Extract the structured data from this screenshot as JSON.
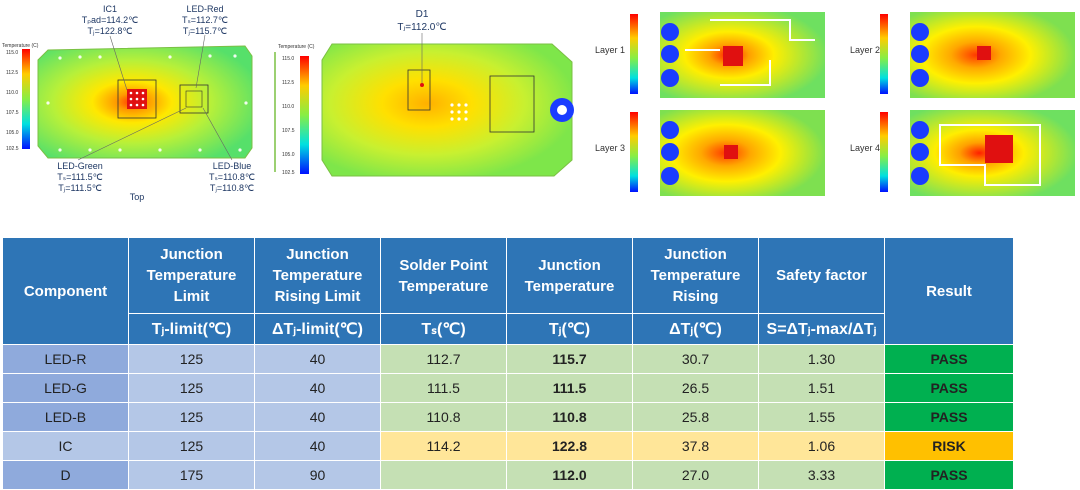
{
  "figure": {
    "top_view": {
      "ic1": {
        "name": "IC1",
        "tpad": "Tₚad=114.2℃",
        "tj": "Tⱼ=122.8℃"
      },
      "led_red": {
        "name": "LED-Red",
        "ts": "Tₛ=112.7℃",
        "tj": "Tⱼ=115.7℃"
      },
      "led_green": {
        "name": "LED-Green",
        "ts": "Tₛ=111.5℃",
        "tj": "Tⱼ=111.5℃"
      },
      "led_blue": {
        "name": "LED-Blue",
        "ts": "Tₛ=110.8℃",
        "tj": "Tⱼ=110.8℃"
      },
      "label": "Top",
      "scale_title": "Temperature (C)",
      "scale_ticks": [
        "115.0",
        "112.5",
        "110.0",
        "107.5",
        "105.0",
        "102.5"
      ]
    },
    "d1_view": {
      "name": "D1",
      "tj": "Tⱼ=112.0℃",
      "scale_title": "Temperature (C)",
      "scale_ticks": [
        "115.0",
        "112.5",
        "110.0",
        "107.5",
        "105.0",
        "102.5"
      ]
    },
    "layers": [
      "Layer 1",
      "Layer 2",
      "Layer 3",
      "Layer 4"
    ]
  },
  "chart_data": {
    "type": "table",
    "columns": [
      "Component",
      "Junction Temperature Limit",
      "Junction Temperature Rising Limit",
      "Solder Point Temperature",
      "Junction Temperature",
      "Junction Temperature Rising",
      "Safety factor",
      "Result"
    ],
    "units": [
      "",
      "Tⱼ-limit(℃)",
      "ΔTⱼ-limit(℃)",
      "Tₛ(℃)",
      "Tⱼ(℃)",
      "ΔTⱼ(℃)",
      "S=ΔTⱼ-max/ΔTⱼ",
      ""
    ],
    "rows": [
      {
        "component": "LED-R",
        "tj_limit": "125",
        "dtj_limit": "40",
        "ts": "112.7",
        "tj": "115.7",
        "dtj": "30.7",
        "sf": "1.30",
        "result": "PASS"
      },
      {
        "component": "LED-G",
        "tj_limit": "125",
        "dtj_limit": "40",
        "ts": "111.5",
        "tj": "111.5",
        "dtj": "26.5",
        "sf": "1.51",
        "result": "PASS"
      },
      {
        "component": "LED-B",
        "tj_limit": "125",
        "dtj_limit": "40",
        "ts": "110.8",
        "tj": "110.8",
        "dtj": "25.8",
        "sf": "1.55",
        "result": "PASS"
      },
      {
        "component": "IC",
        "tj_limit": "125",
        "dtj_limit": "40",
        "ts": "114.2",
        "tj": "122.8",
        "dtj": "37.8",
        "sf": "1.06",
        "result": "RISK"
      },
      {
        "component": "D",
        "tj_limit": "175",
        "dtj_limit": "90",
        "ts": "",
        "tj": "112.0",
        "dtj": "27.0",
        "sf": "3.33",
        "result": "PASS"
      }
    ],
    "colors": {
      "header": "#2E75B6",
      "limit": "#B4C7E7",
      "measure": "#C5E0B4",
      "risk_row": "#FFE699",
      "pass": "#00B050",
      "risk": "#FFC000"
    }
  }
}
